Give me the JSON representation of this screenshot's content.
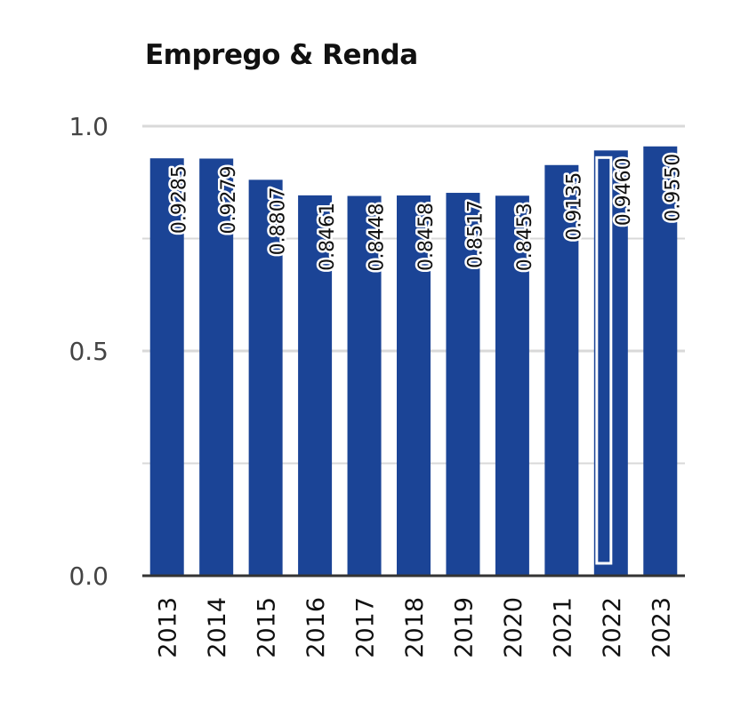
{
  "chart_data": {
    "type": "bar",
    "title": "Emprego & Renda",
    "xlabel": "",
    "ylabel": "",
    "categories": [
      "2013",
      "2014",
      "2015",
      "2016",
      "2017",
      "2018",
      "2019",
      "2020",
      "2021",
      "2022",
      "2023"
    ],
    "values": [
      0.9285,
      0.9279,
      0.8807,
      0.8461,
      0.8448,
      0.8458,
      0.8517,
      0.8453,
      0.9135,
      0.946,
      0.955
    ],
    "data_labels": [
      "0.9285",
      "0.9279",
      "0.8807",
      "0.8461",
      "0.8448",
      "0.8458",
      "0.8517",
      "0.8453",
      "0.9135",
      "0.9460",
      "0.9550"
    ],
    "ylim": [
      0,
      1
    ],
    "yticks": [
      "0.0",
      "0.5",
      "1.0"
    ],
    "grid": true,
    "highlighted_category": "2022",
    "colors": {
      "bar": "#1b4496",
      "grid": "#d9d9d9",
      "axis": "#333333"
    }
  }
}
